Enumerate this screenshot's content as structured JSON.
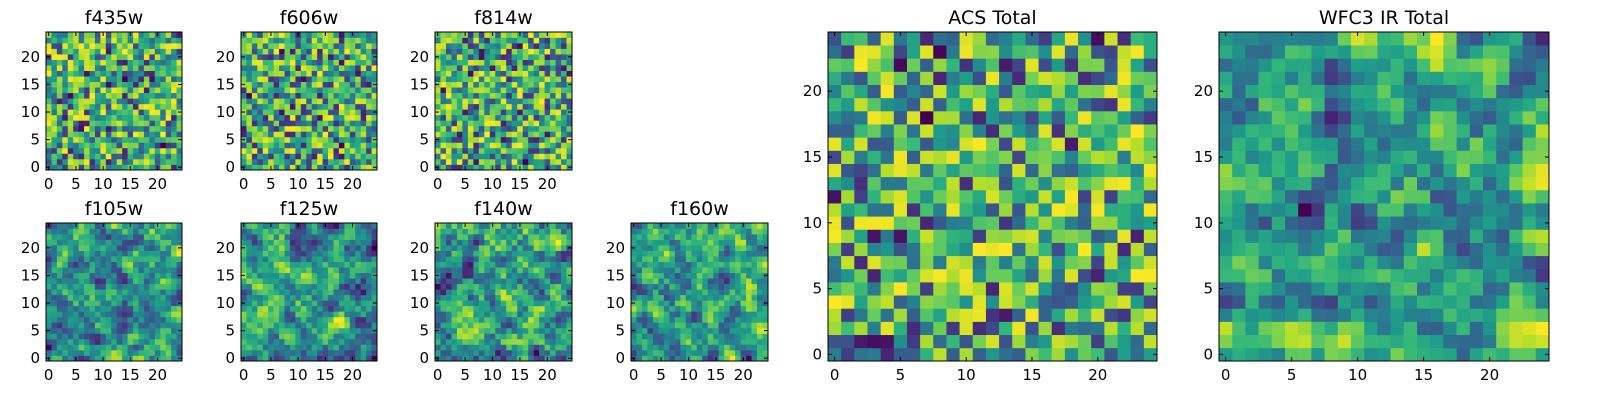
{
  "chart_data": [
    {
      "type": "heatmap",
      "title": "f435w",
      "xticks": [
        "0",
        "5",
        "10",
        "15",
        "20"
      ],
      "yticks": [
        "0",
        "5",
        "10",
        "15",
        "20"
      ],
      "xlim": [
        -0.5,
        24.5
      ],
      "ylim": [
        -0.5,
        24.5
      ],
      "rows": 25,
      "cols": 25,
      "colormap": "viridis",
      "pattern": "noise",
      "seed": 11
    },
    {
      "type": "heatmap",
      "title": "f606w",
      "xticks": [
        "0",
        "5",
        "10",
        "15",
        "20"
      ],
      "yticks": [
        "0",
        "5",
        "10",
        "15",
        "20"
      ],
      "xlim": [
        -0.5,
        24.5
      ],
      "ylim": [
        -0.5,
        24.5
      ],
      "rows": 25,
      "cols": 25,
      "colormap": "viridis",
      "pattern": "noise",
      "seed": 23
    },
    {
      "type": "heatmap",
      "title": "f814w",
      "xticks": [
        "0",
        "5",
        "10",
        "15",
        "20"
      ],
      "yticks": [
        "0",
        "5",
        "10",
        "15",
        "20"
      ],
      "xlim": [
        -0.5,
        24.5
      ],
      "ylim": [
        -0.5,
        24.5
      ],
      "rows": 25,
      "cols": 25,
      "colormap": "viridis",
      "pattern": "noise",
      "seed": 37
    },
    {
      "type": "heatmap",
      "title": "f105w",
      "xticks": [
        "0",
        "5",
        "10",
        "15",
        "20"
      ],
      "yticks": [
        "0",
        "5",
        "10",
        "15",
        "20"
      ],
      "xlim": [
        -0.5,
        24.5
      ],
      "ylim": [
        -0.5,
        24.5
      ],
      "rows": 25,
      "cols": 25,
      "colormap": "viridis",
      "pattern": "smooth",
      "seed": 41
    },
    {
      "type": "heatmap",
      "title": "f125w",
      "xticks": [
        "0",
        "5",
        "10",
        "15",
        "20"
      ],
      "yticks": [
        "0",
        "5",
        "10",
        "15",
        "20"
      ],
      "xlim": [
        -0.5,
        24.5
      ],
      "ylim": [
        -0.5,
        24.5
      ],
      "rows": 25,
      "cols": 25,
      "colormap": "viridis",
      "pattern": "smooth",
      "seed": 53
    },
    {
      "type": "heatmap",
      "title": "f140w",
      "xticks": [
        "0",
        "5",
        "10",
        "15",
        "20"
      ],
      "yticks": [
        "0",
        "5",
        "10",
        "15",
        "20"
      ],
      "xlim": [
        -0.5,
        24.5
      ],
      "ylim": [
        -0.5,
        24.5
      ],
      "rows": 25,
      "cols": 25,
      "colormap": "viridis",
      "pattern": "smooth",
      "seed": 67
    },
    {
      "type": "heatmap",
      "title": "f160w",
      "xticks": [
        "0",
        "5",
        "10",
        "15",
        "20"
      ],
      "yticks": [
        "0",
        "5",
        "10",
        "15",
        "20"
      ],
      "xlim": [
        -0.5,
        24.5
      ],
      "ylim": [
        -0.5,
        24.5
      ],
      "rows": 25,
      "cols": 25,
      "colormap": "viridis",
      "pattern": "smooth",
      "seed": 79
    },
    {
      "type": "heatmap",
      "title": "ACS Total",
      "xticks": [
        "0",
        "5",
        "10",
        "15",
        "20"
      ],
      "yticks": [
        "0",
        "5",
        "10",
        "15",
        "20"
      ],
      "xlim": [
        -0.5,
        24.5
      ],
      "ylim": [
        -0.5,
        24.5
      ],
      "rows": 25,
      "cols": 25,
      "colormap": "viridis",
      "pattern": "noise",
      "seed": 97
    },
    {
      "type": "heatmap",
      "title": "WFC3 IR Total",
      "xticks": [
        "0",
        "5",
        "10",
        "15",
        "20"
      ],
      "yticks": [
        "0",
        "5",
        "10",
        "15",
        "20"
      ],
      "xlim": [
        -0.5,
        24.5
      ],
      "ylim": [
        -0.5,
        24.5
      ],
      "rows": 25,
      "cols": 25,
      "colormap": "viridis",
      "pattern": "smooth",
      "seed": 103
    }
  ]
}
